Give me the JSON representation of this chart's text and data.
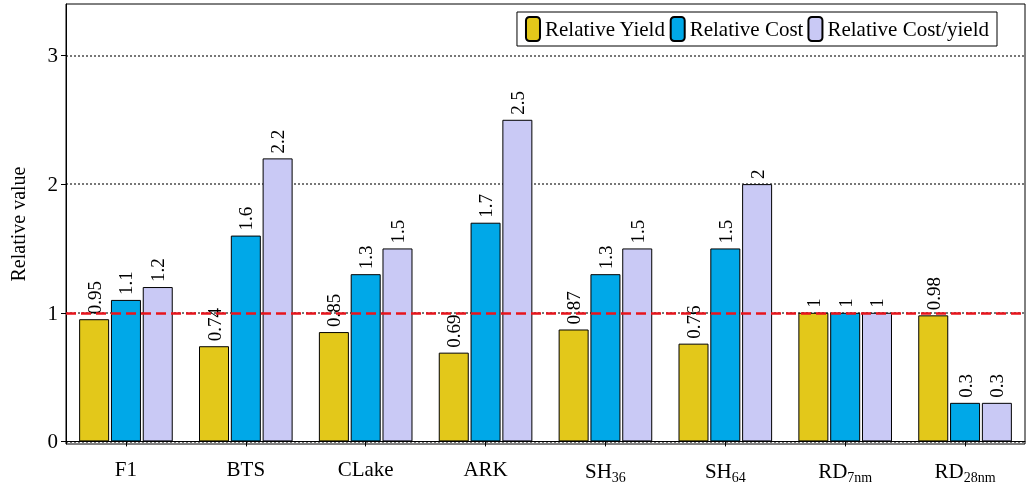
{
  "chart_data": {
    "type": "bar",
    "ylabel": "Relative value",
    "categories": [
      "F1",
      "BTS",
      "CLake",
      "ARK",
      "SH$_{36}$",
      "SH$_{64}$",
      "RD$_{7nm}$",
      "RD$_{28nm}$"
    ],
    "series": [
      {
        "name": "Relative Yield",
        "color": "#e3c81a",
        "values": [
          0.95,
          0.74,
          0.85,
          0.69,
          0.87,
          0.76,
          1,
          0.98
        ]
      },
      {
        "name": "Relative Cost",
        "color": "#00a8e8",
        "values": [
          1.1,
          1.6,
          1.3,
          1.7,
          1.3,
          1.5,
          1,
          0.3
        ]
      },
      {
        "name": "Relative Cost/yield",
        "color": "#c9c9f5",
        "values": [
          1.2,
          2.2,
          1.5,
          2.5,
          1.5,
          2,
          1,
          0.3
        ]
      }
    ],
    "ylim": [
      -0.02,
      3.4
    ],
    "yticks": [
      0,
      1,
      2,
      3
    ],
    "grid": "y",
    "legend": "top right",
    "data_labels": true,
    "ref_lines": [
      {
        "axis": "y",
        "value": 1,
        "color": "#e8141c",
        "line_style": "dashed"
      }
    ]
  }
}
